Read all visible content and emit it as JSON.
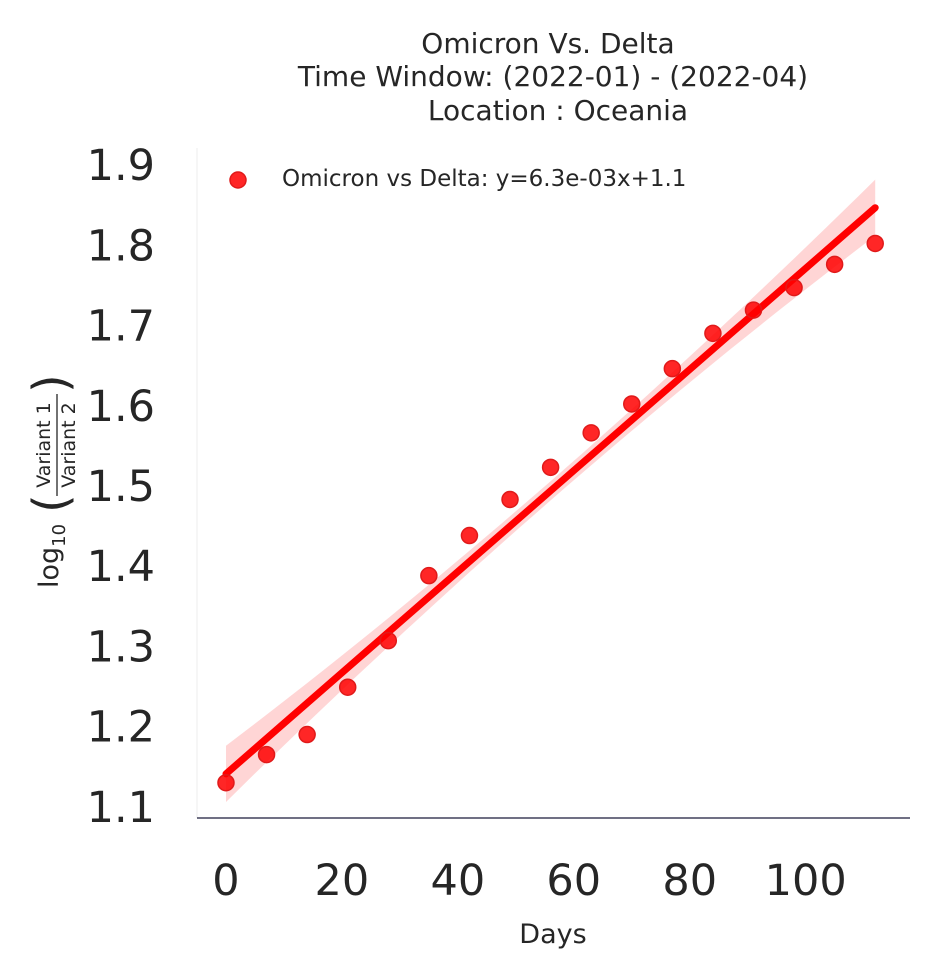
{
  "chart_data": {
    "type": "scatter",
    "title_lines": [
      "Omicron Vs. Delta",
      "Time Window: (2022-01) - (2022-04)",
      "Location : Oceania"
    ],
    "xlabel": "Days",
    "ylabel": {
      "prefix": "log",
      "subscript": "10",
      "numerator": "Variant 1",
      "denominator": "Variant 2"
    },
    "xlim": [
      -5,
      118
    ],
    "ylim": [
      1.085,
      1.92
    ],
    "xticks": [
      0,
      20,
      40,
      60,
      80,
      100
    ],
    "yticks": [
      1.1,
      1.2,
      1.3,
      1.4,
      1.5,
      1.6,
      1.7,
      1.8,
      1.9
    ],
    "xtick_labels": [
      "0",
      "20",
      "40",
      "60",
      "80",
      "100"
    ],
    "ytick_labels": [
      "1.1",
      "1.2",
      "1.3",
      "1.4",
      "1.5",
      "1.6",
      "1.7",
      "1.8",
      "1.9"
    ],
    "grid": false,
    "legend_position": "top-left",
    "series": [
      {
        "name": "Omicron vs Delta: y=6.3e-03x+1.1",
        "color": "#ff0000",
        "x": [
          0,
          7,
          14,
          21,
          28,
          35,
          42,
          49,
          56,
          63,
          70,
          77,
          84,
          91,
          98,
          105,
          112
        ],
        "y": [
          1.129,
          1.164,
          1.189,
          1.248,
          1.306,
          1.387,
          1.437,
          1.482,
          1.522,
          1.565,
          1.601,
          1.645,
          1.689,
          1.718,
          1.746,
          1.775,
          1.801
        ]
      }
    ],
    "regression": {
      "slope": 0.0063,
      "intercept": 1.14,
      "x_range": [
        0,
        112
      ],
      "ci_halfwidth_edge": 0.035,
      "ci_halfwidth_center": 0.012,
      "color": "#ff0000",
      "band_color": "#ffb3b3"
    }
  }
}
